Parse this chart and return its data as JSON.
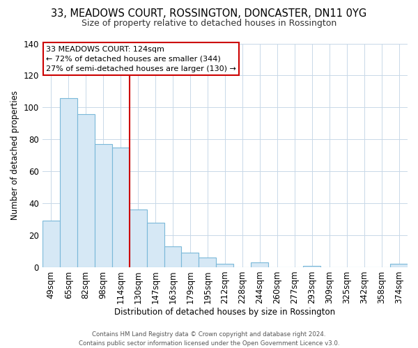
{
  "title": "33, MEADOWS COURT, ROSSINGTON, DONCASTER, DN11 0YG",
  "subtitle": "Size of property relative to detached houses in Rossington",
  "xlabel": "Distribution of detached houses by size in Rossington",
  "ylabel": "Number of detached properties",
  "bar_labels": [
    "49sqm",
    "65sqm",
    "82sqm",
    "98sqm",
    "114sqm",
    "130sqm",
    "147sqm",
    "163sqm",
    "179sqm",
    "195sqm",
    "212sqm",
    "228sqm",
    "244sqm",
    "260sqm",
    "277sqm",
    "293sqm",
    "309sqm",
    "325sqm",
    "342sqm",
    "358sqm",
    "374sqm"
  ],
  "bar_heights": [
    29,
    106,
    96,
    77,
    75,
    36,
    28,
    13,
    9,
    6,
    2,
    0,
    3,
    0,
    0,
    1,
    0,
    0,
    0,
    0,
    2
  ],
  "bar_color": "#d6e8f5",
  "bar_edge_color": "#7ab8d9",
  "vline_color": "#cc0000",
  "ylim": [
    0,
    140
  ],
  "annotation_title": "33 MEADOWS COURT: 124sqm",
  "annotation_line1": "← 72% of detached houses are smaller (344)",
  "annotation_line2": "27% of semi-detached houses are larger (130) →",
  "annotation_box_color": "#ffffff",
  "annotation_box_edge": "#cc0000",
  "footer1": "Contains HM Land Registry data © Crown copyright and database right 2024.",
  "footer2": "Contains public sector information licensed under the Open Government Licence v3.0.",
  "background_color": "#ffffff",
  "grid_color": "#c8d8e8",
  "title_fontsize": 10.5,
  "subtitle_fontsize": 9
}
